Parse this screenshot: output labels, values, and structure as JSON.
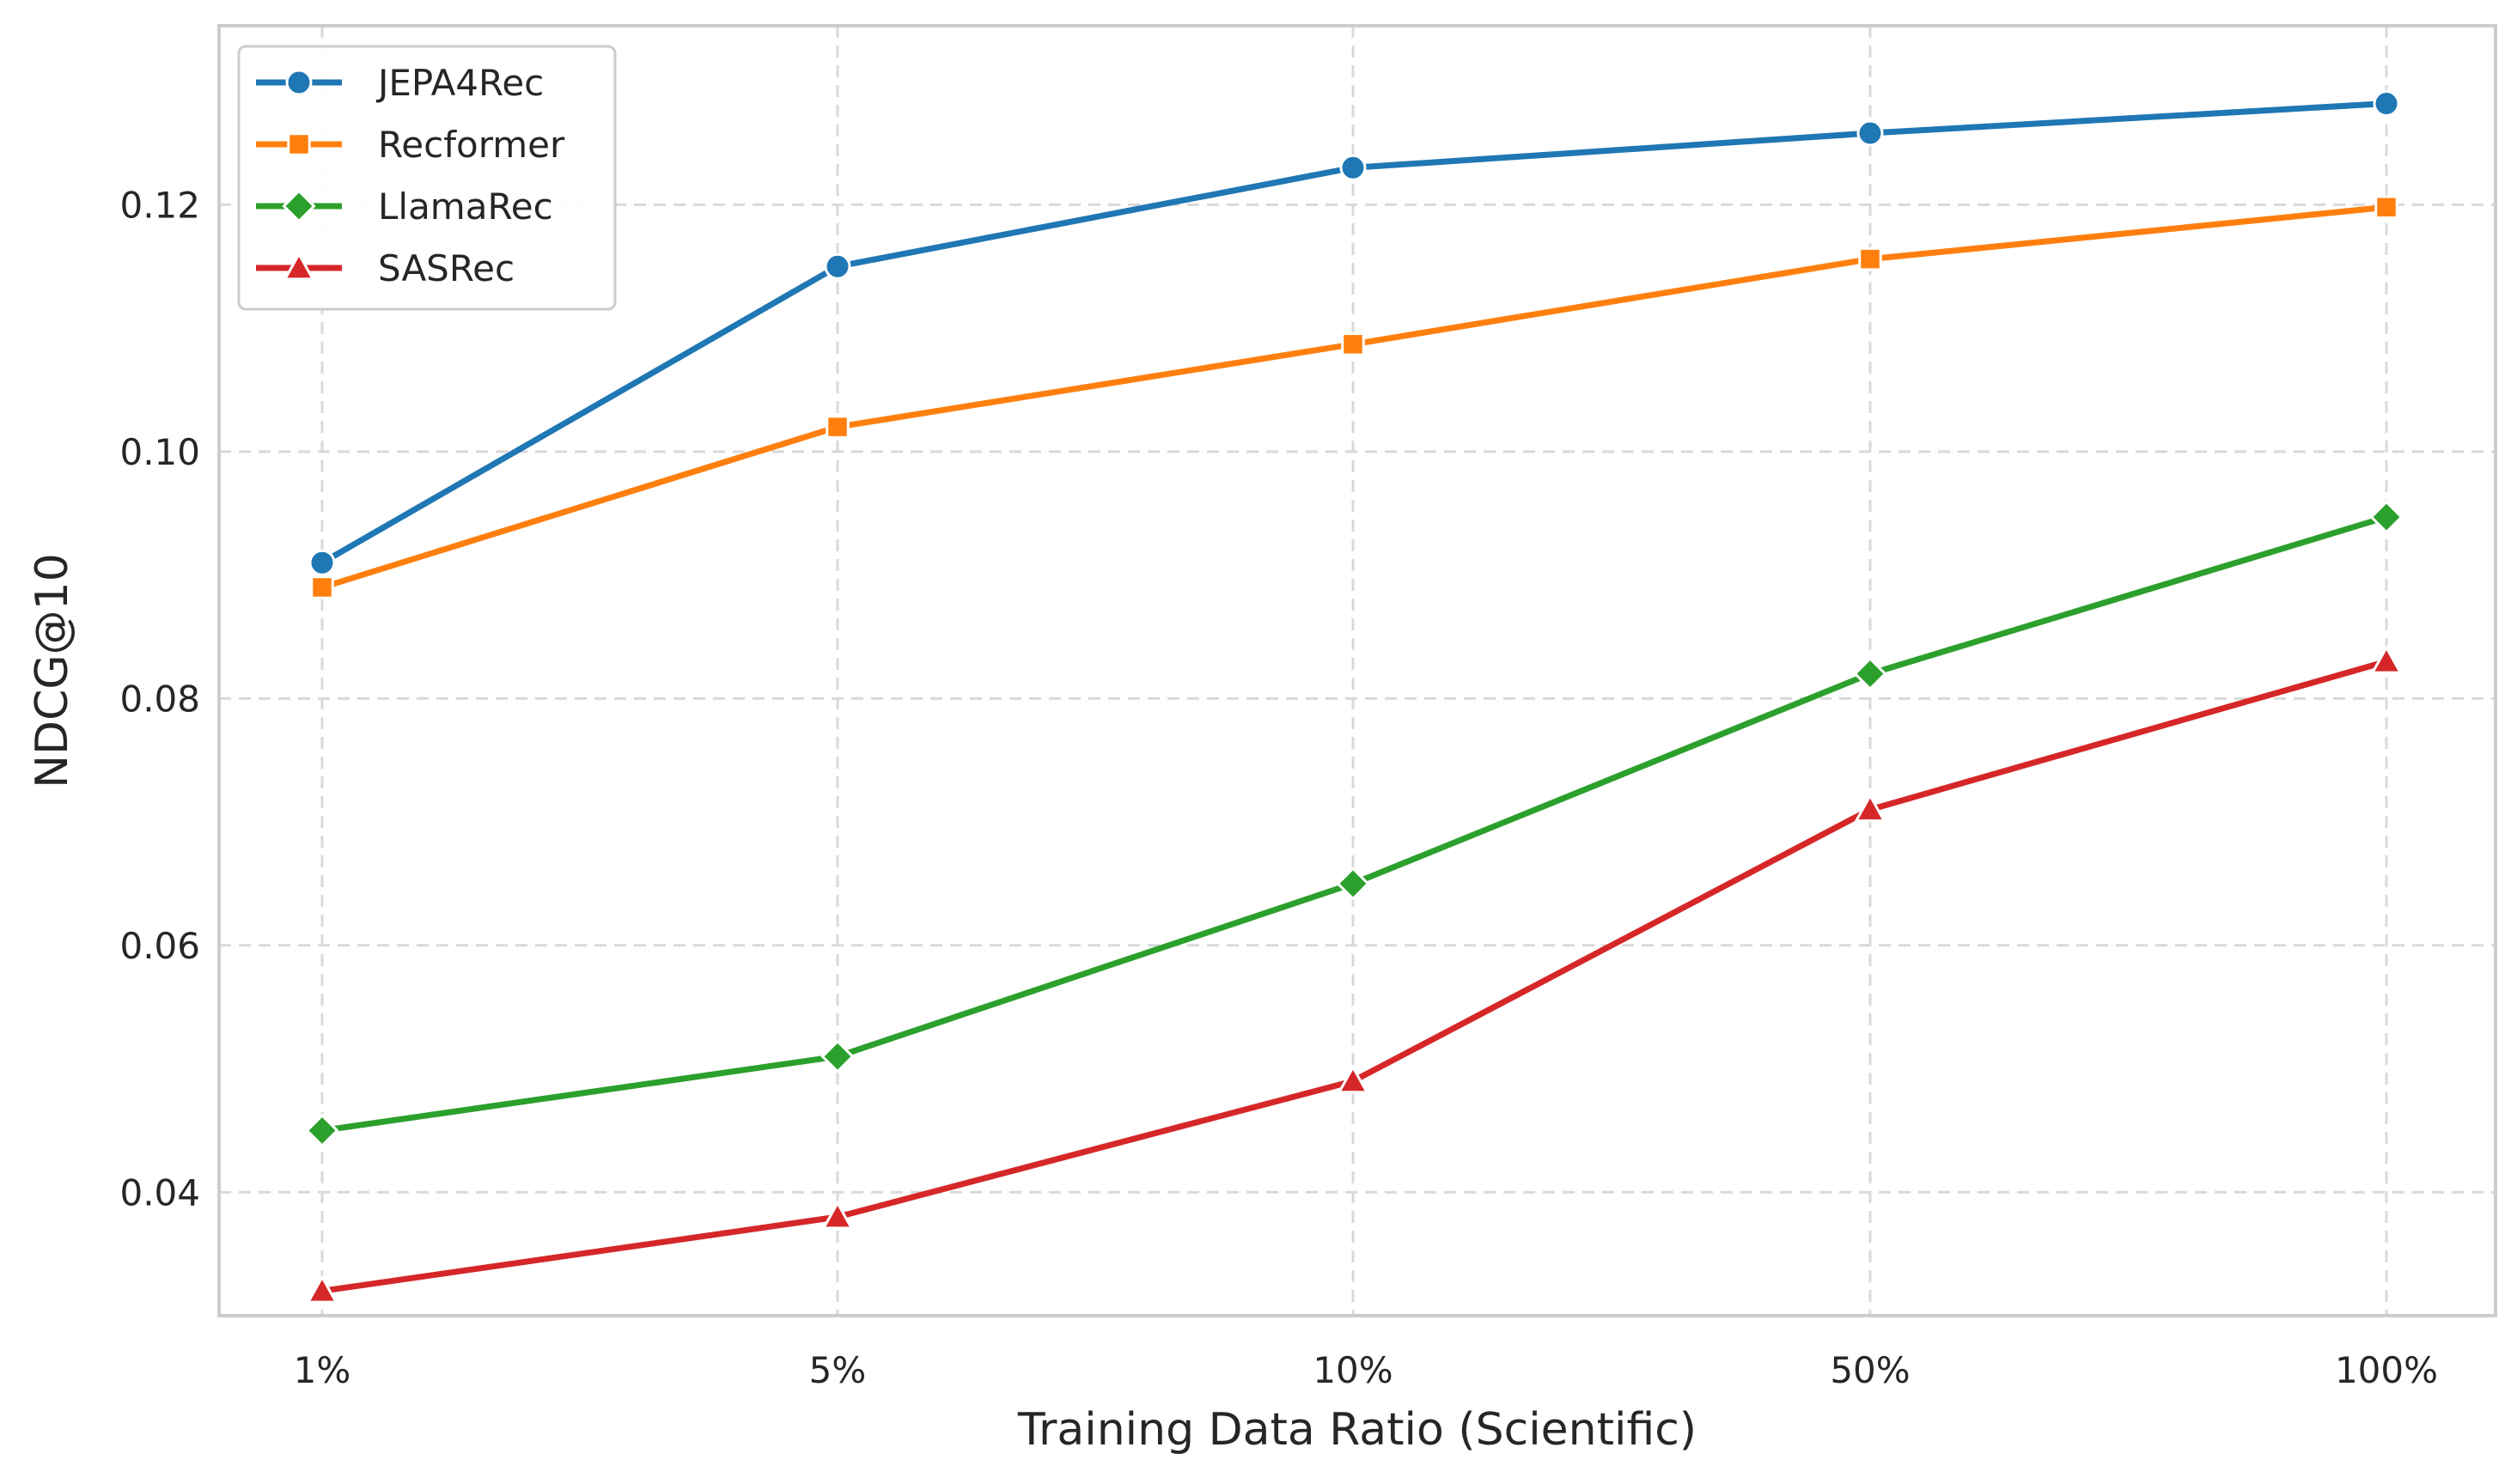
{
  "chart_data": {
    "type": "line",
    "title": "",
    "xlabel": "Training Data Ratio (Scientific)",
    "ylabel": "NDCG@10",
    "categories": [
      "1%",
      "5%",
      "10%",
      "50%",
      "100%"
    ],
    "ylim": [
      0.03,
      0.1345
    ],
    "yticks": [
      0.04,
      0.06,
      0.08,
      0.1,
      0.12
    ],
    "ytick_labels": [
      "0.04",
      "0.06",
      "0.08",
      "0.10",
      "0.12"
    ],
    "grid": true,
    "legend_position": "top-left",
    "series": [
      {
        "name": "JEPA4Rec",
        "values": [
          0.091,
          0.115,
          0.123,
          0.1258,
          0.1282
        ],
        "color": "#1f77b4",
        "marker": "circle"
      },
      {
        "name": "Recformer",
        "values": [
          0.089,
          0.102,
          0.1087,
          0.1156,
          0.1198
        ],
        "color": "#ff7f0e",
        "marker": "square"
      },
      {
        "name": "LlamaRec",
        "values": [
          0.045,
          0.051,
          0.065,
          0.082,
          0.0947
        ],
        "color": "#2ca02c",
        "marker": "diamond"
      },
      {
        "name": "SASRec",
        "values": [
          0.032,
          0.038,
          0.049,
          0.071,
          0.083
        ],
        "color": "#d62728",
        "marker": "triangle"
      }
    ]
  }
}
